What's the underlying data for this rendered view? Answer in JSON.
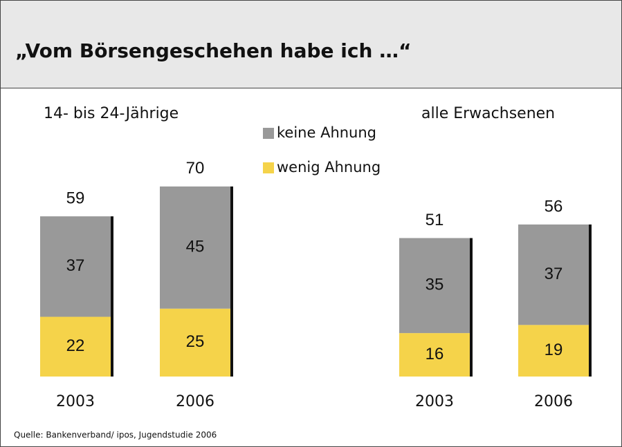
{
  "title": "„Vom Börsengeschehen habe ich …“",
  "source": "Quelle: Bankenverband/ ipos, Jugendstudie 2006",
  "chart_data": [
    {
      "type": "stacked-bar",
      "subtitle": "14- bis 24-Jährige",
      "categories": [
        "2003",
        "2006"
      ],
      "series": [
        {
          "name": "wenig Ahnung",
          "color": "#f5d34a",
          "values": [
            22,
            25
          ]
        },
        {
          "name": "keine Ahnung",
          "color": "#999999",
          "values": [
            37,
            45
          ]
        }
      ],
      "totals": [
        59,
        70
      ]
    },
    {
      "type": "stacked-bar",
      "subtitle": "alle Erwachsenen",
      "categories": [
        "2003",
        "2006"
      ],
      "series": [
        {
          "color": "#f5d34a",
          "values": [
            16,
            19
          ]
        },
        {
          "color": "#999999",
          "values": [
            35,
            37
          ]
        }
      ],
      "totals": [
        51,
        56
      ]
    }
  ]
}
